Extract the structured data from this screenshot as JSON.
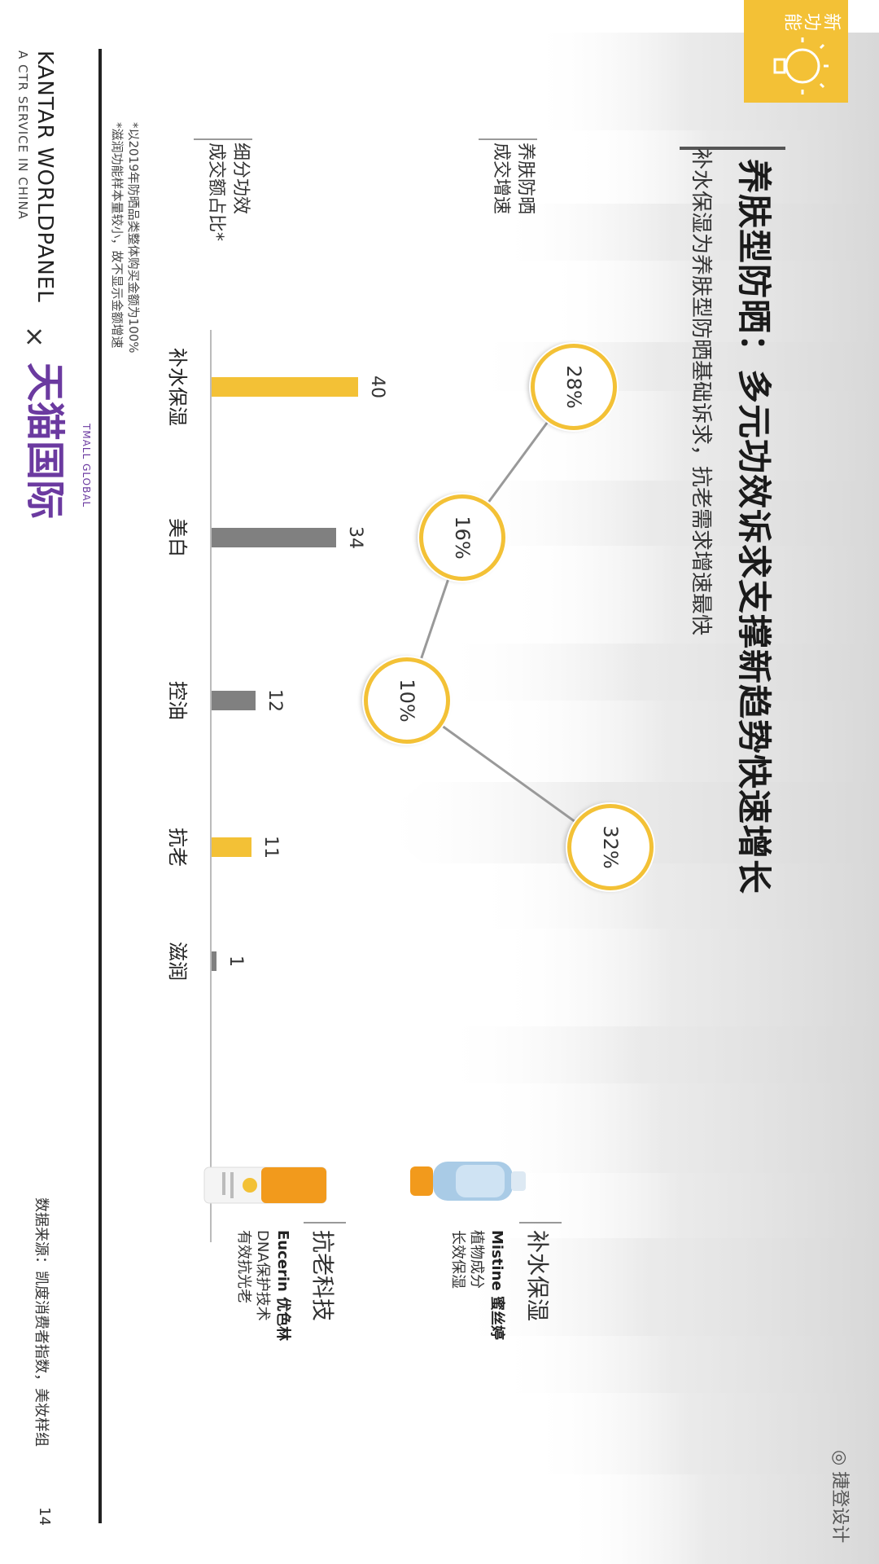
{
  "header": {
    "badge": "新功能",
    "title": "养肤型防晒：多元功效诉求支撑新趋势快速增长",
    "subtitle": "补水保湿为养肤型防晒基础诉求，抗老需求增速最快"
  },
  "row_labels": {
    "growth": [
      "养肤防晒",
      "成交增速"
    ],
    "share": [
      "细分功效",
      "成交额占比*"
    ]
  },
  "chart_data": {
    "type": "bar",
    "categories": [
      "补水保湿",
      "美白",
      "控油",
      "抗老",
      "滋润"
    ],
    "values": [
      40,
      34,
      12,
      11,
      1
    ],
    "value_labels": [
      "40",
      "34",
      "12",
      "11",
      "1"
    ],
    "bar_colors": [
      "#f3c136",
      "#808080",
      "#808080",
      "#f3c136",
      "#808080"
    ],
    "growth_series": {
      "type": "line",
      "categories": [
        "补水保湿",
        "美白",
        "控油",
        "抗老"
      ],
      "values": [
        28,
        16,
        10,
        32
      ],
      "value_labels": [
        "28%",
        "16%",
        "10%",
        "32%"
      ]
    }
  },
  "products": [
    {
      "head": "补水保湿",
      "brand": "Mistine 蜜丝婷",
      "lines": [
        "植物成分",
        "长效保湿"
      ]
    },
    {
      "head": "抗老科技",
      "brand": "Eucerin 优色林",
      "lines": [
        "DNA保护技术",
        "有效抗光老"
      ]
    }
  ],
  "notes": [
    "*以2019年防晒品类整体购买金额为100%",
    "*滋润功能样本量较小，故不显示金额增速"
  ],
  "footer": {
    "kantar": "KANTAR WORLDPANEL",
    "kantar_sub": "A CTR SERVICE IN CHINA",
    "times": "×",
    "tmall": "天猫国际",
    "tmall_sub": "TMALL GLOBAL",
    "source": "数据来源：凯度消费者指数，美妆样组",
    "page": "14"
  },
  "watermark": "捷登设计",
  "colors": {
    "accent": "#f3c136",
    "gray_bar": "#808080",
    "tmall": "#6b3aa0"
  }
}
